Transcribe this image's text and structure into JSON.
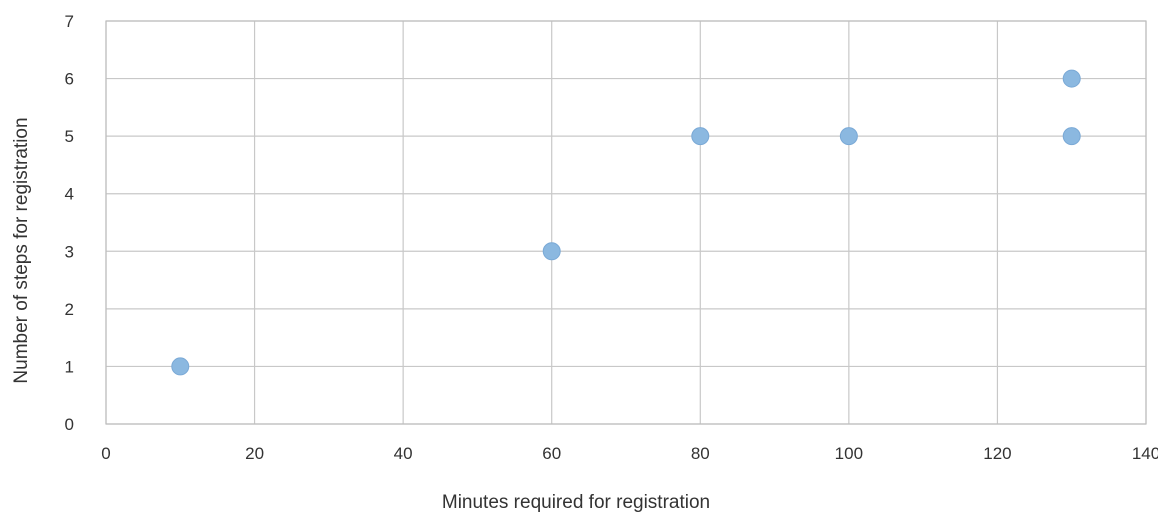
{
  "chart_data": {
    "type": "scatter",
    "title": "",
    "xlabel": "Minutes required for registration",
    "ylabel": "Number of steps for registration",
    "xlim": [
      0,
      140
    ],
    "ylim": [
      0,
      7
    ],
    "x_ticks": [
      "0",
      "20",
      "40",
      "60",
      "80",
      "100",
      "120",
      "140"
    ],
    "y_ticks": [
      "0",
      "1",
      "2",
      "3",
      "4",
      "5",
      "6",
      "7"
    ],
    "grid": true,
    "legend": "none",
    "marker_color": "#8bb8e0",
    "series": [
      {
        "points": [
          {
            "x": 10,
            "y": 1
          },
          {
            "x": 60,
            "y": 3
          },
          {
            "x": 80,
            "y": 5
          },
          {
            "x": 100,
            "y": 5
          },
          {
            "x": 130,
            "y": 6
          },
          {
            "x": 130,
            "y": 5
          }
        ]
      }
    ]
  }
}
